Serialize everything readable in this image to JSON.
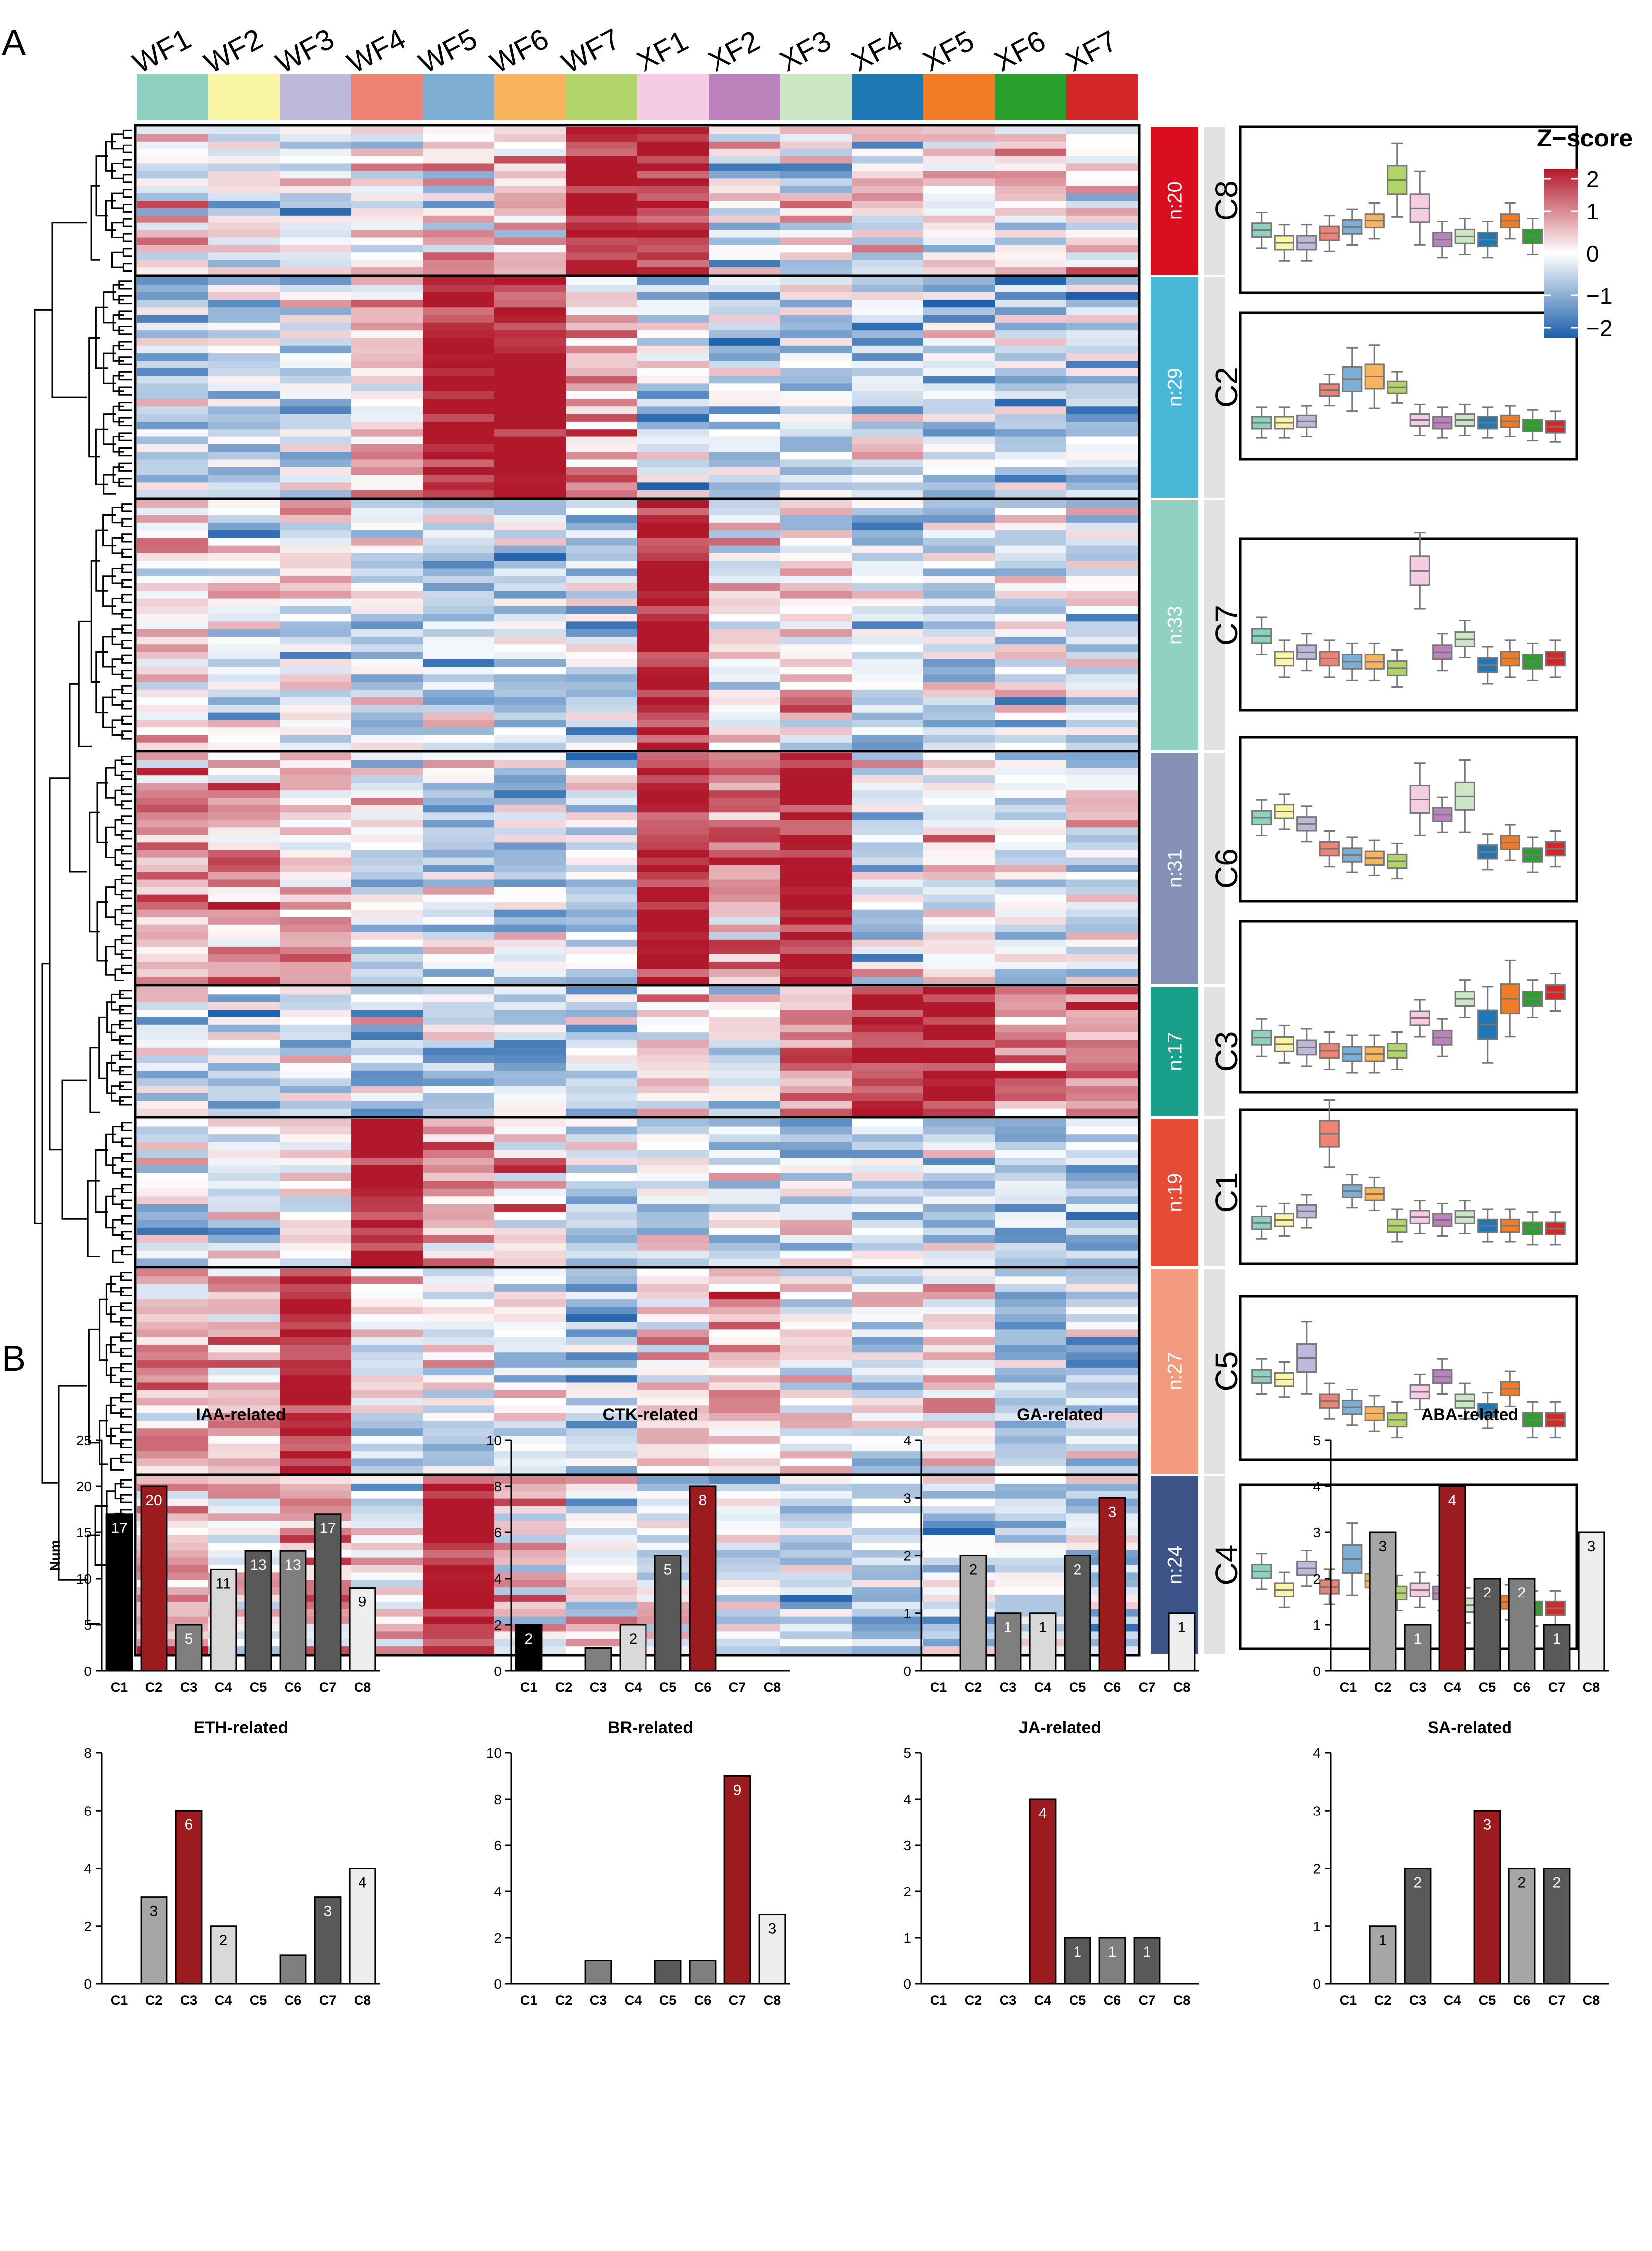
{
  "panel_labels": {
    "a": "A",
    "b": "B"
  },
  "samples": [
    "WF1",
    "WF2",
    "WF3",
    "WF4",
    "WF5",
    "WF6",
    "WF7",
    "XF1",
    "XF2",
    "XF3",
    "XF4",
    "XF5",
    "XF6",
    "XF7"
  ],
  "sample_colors": [
    "#8FD1C1",
    "#FAF6A5",
    "#BEB9DA",
    "#F08274",
    "#7FAED4",
    "#F7B35D",
    "#B1D56A",
    "#F5CCE3",
    "#BC82BC",
    "#CCE7C6",
    "#1F77B4",
    "#F07D26",
    "#2CA02C",
    "#D62728"
  ],
  "legend": {
    "title": "Z−score",
    "ticks": [
      "2",
      "1",
      "0",
      "−1",
      "−2"
    ],
    "tick_values": [
      2,
      1,
      0,
      -1,
      -2
    ],
    "colors": [
      "#1c5fab",
      "#ffffff",
      "#b2182b"
    ]
  },
  "clusters": [
    {
      "id": "C8",
      "n_label": "n:20",
      "n": 20,
      "color": "#DA0E1E",
      "high": [
        6,
        7
      ],
      "medians": [
        0.1,
        -0.3,
        -0.3,
        0.0,
        0.2,
        0.4,
        1.7,
        0.8,
        -0.2,
        -0.1,
        -0.2,
        0.4,
        -0.1,
        0.2
      ]
    },
    {
      "id": "C2",
      "n_label": "n:29",
      "n": 29,
      "color": "#49B7D8",
      "high": [
        4,
        5
      ],
      "medians": [
        -0.6,
        -0.6,
        -0.55,
        0.6,
        1.0,
        1.1,
        0.7,
        -0.5,
        -0.6,
        -0.5,
        -0.6,
        -0.55,
        -0.7,
        -0.75
      ]
    },
    {
      "id": "C7",
      "n_label": "n:33",
      "n": 33,
      "color": "#91D1C2",
      "high": [
        7
      ],
      "medians": [
        0.4,
        -0.3,
        -0.1,
        -0.3,
        -0.4,
        -0.4,
        -0.6,
        2.4,
        -0.1,
        0.3,
        -0.5,
        -0.3,
        -0.4,
        -0.3
      ]
    },
    {
      "id": "C6",
      "n_label": "n:31",
      "n": 31,
      "color": "#8491B4",
      "high": [
        7,
        9
      ],
      "medians": [
        0.8,
        1.0,
        0.6,
        -0.2,
        -0.4,
        -0.5,
        -0.6,
        1.4,
        0.9,
        1.5,
        -0.3,
        0.0,
        -0.4,
        -0.2
      ]
    },
    {
      "id": "C3",
      "n_label": "n:17",
      "n": 17,
      "color": "#1AA08A",
      "high": [
        10,
        11
      ],
      "medians": [
        -0.2,
        -0.4,
        -0.5,
        -0.6,
        -0.7,
        -0.7,
        -0.6,
        0.4,
        -0.2,
        1.0,
        0.2,
        1.0,
        1.0,
        1.2
      ]
    },
    {
      "id": "C1",
      "n_label": "n:19",
      "n": 19,
      "color": "#E64B35",
      "high": [
        3
      ],
      "medians": [
        -0.5,
        -0.4,
        -0.1,
        2.6,
        0.6,
        0.5,
        -0.6,
        -0.3,
        -0.4,
        -0.3,
        -0.6,
        -0.6,
        -0.7,
        -0.7
      ]
    },
    {
      "id": "C5",
      "n_label": "n:27",
      "n": 27,
      "color": "#F39B7F",
      "high": [
        2
      ],
      "medians": [
        0.8,
        0.7,
        1.4,
        0.0,
        -0.2,
        -0.4,
        -0.6,
        0.3,
        0.8,
        0.0,
        -0.3,
        0.4,
        -0.6,
        -0.6
      ]
    },
    {
      "id": "C4",
      "n_label": "n:24",
      "n": 24,
      "color": "#3C5488",
      "high": [
        4
      ],
      "medians": [
        0.6,
        0.0,
        0.7,
        0.1,
        1.0,
        0.3,
        -0.1,
        0.0,
        -0.1,
        -0.5,
        -0.7,
        -0.4,
        -0.6,
        -0.6
      ]
    }
  ],
  "chart_data": [
    {
      "type": "bar",
      "title": "IAA-related",
      "ylabel": "Num",
      "categories": [
        "C1",
        "C2",
        "C3",
        "C4",
        "C5",
        "C6",
        "C7",
        "C8"
      ],
      "values": [
        17,
        20,
        5,
        11,
        13,
        13,
        17,
        9
      ],
      "value_labels": [
        "17",
        "20",
        "5",
        "11",
        "13",
        "13",
        "17",
        "9"
      ],
      "ylim": [
        0,
        25
      ],
      "yticks": [
        "0",
        "5",
        "10",
        "15",
        "20",
        "25"
      ],
      "highlight_index": 1,
      "colors": [
        "#000000",
        "#9B1B1E",
        "#7F7F7F",
        "#D9D9D9",
        "#595959",
        "#7F7F7F",
        "#595959",
        "#EEEEEE"
      ],
      "label_colors": [
        "#ffffff",
        "#ffffff",
        "#ffffff",
        "#000000",
        "#ffffff",
        "#ffffff",
        "#ffffff",
        "#000000"
      ]
    },
    {
      "type": "bar",
      "title": "CTK-related",
      "ylabel": "",
      "categories": [
        "C1",
        "C2",
        "C3",
        "C4",
        "C5",
        "C6",
        "C7",
        "C8"
      ],
      "values": [
        2,
        0,
        1,
        2,
        5,
        8,
        0,
        0
      ],
      "value_labels": [
        "2",
        "",
        "",
        "2",
        "5",
        "8",
        "",
        ""
      ],
      "ylim": [
        0,
        10
      ],
      "yticks": [
        "0",
        "2",
        "4",
        "6",
        "8",
        "10"
      ],
      "highlight_index": 5,
      "colors": [
        "#000000",
        "#9B1B1E",
        "#7F7F7F",
        "#D9D9D9",
        "#595959",
        "#9B1B1E",
        "#595959",
        "#EEEEEE"
      ],
      "label_colors": [
        "#ffffff",
        "#ffffff",
        "#ffffff",
        "#000000",
        "#ffffff",
        "#ffffff",
        "#ffffff",
        "#000000"
      ]
    },
    {
      "type": "bar",
      "title": "GA-related",
      "ylabel": "",
      "categories": [
        "C1",
        "C2",
        "C3",
        "C4",
        "C5",
        "C6",
        "C7",
        "C8"
      ],
      "values": [
        0,
        2,
        1,
        1,
        2,
        3,
        0,
        1
      ],
      "value_labels": [
        "",
        "2",
        "1",
        "1",
        "2",
        "3",
        "",
        "1"
      ],
      "ylim": [
        0,
        4
      ],
      "yticks": [
        "0",
        "1",
        "2",
        "3",
        "4"
      ],
      "highlight_index": 5,
      "colors": [
        "#000000",
        "#A6A6A6",
        "#7F7F7F",
        "#D9D9D9",
        "#595959",
        "#9B1B1E",
        "#595959",
        "#EEEEEE"
      ],
      "label_colors": [
        "#ffffff",
        "#000000",
        "#ffffff",
        "#000000",
        "#ffffff",
        "#ffffff",
        "#ffffff",
        "#000000"
      ]
    },
    {
      "type": "bar",
      "title": "ABA-related",
      "ylabel": "",
      "categories": [
        "C1",
        "C2",
        "C3",
        "C4",
        "C5",
        "C6",
        "C7",
        "C8"
      ],
      "values": [
        0,
        3,
        1,
        4,
        2,
        2,
        1,
        3
      ],
      "value_labels": [
        "",
        "3",
        "1",
        "4",
        "2",
        "2",
        "1",
        "3"
      ],
      "ylim": [
        0,
        5
      ],
      "yticks": [
        "0",
        "1",
        "2",
        "3",
        "4",
        "5"
      ],
      "highlight_index": 3,
      "colors": [
        "#000000",
        "#A6A6A6",
        "#7F7F7F",
        "#9B1B1E",
        "#595959",
        "#7F7F7F",
        "#595959",
        "#EEEEEE"
      ],
      "label_colors": [
        "#ffffff",
        "#000000",
        "#ffffff",
        "#ffffff",
        "#ffffff",
        "#ffffff",
        "#ffffff",
        "#000000"
      ]
    },
    {
      "type": "bar",
      "title": "ETH-related",
      "ylabel": "",
      "categories": [
        "C1",
        "C2",
        "C3",
        "C4",
        "C5",
        "C6",
        "C7",
        "C8"
      ],
      "values": [
        0,
        3,
        6,
        2,
        0,
        1,
        3,
        4
      ],
      "value_labels": [
        "",
        "3",
        "6",
        "2",
        "",
        "",
        "3",
        "4"
      ],
      "ylim": [
        0,
        8
      ],
      "yticks": [
        "0",
        "2",
        "4",
        "6",
        "8"
      ],
      "highlight_index": 2,
      "colors": [
        "#000000",
        "#A6A6A6",
        "#9B1B1E",
        "#D9D9D9",
        "#595959",
        "#7F7F7F",
        "#595959",
        "#EEEEEE"
      ],
      "label_colors": [
        "#ffffff",
        "#000000",
        "#ffffff",
        "#000000",
        "#ffffff",
        "#ffffff",
        "#ffffff",
        "#000000"
      ]
    },
    {
      "type": "bar",
      "title": "BR-related",
      "ylabel": "",
      "categories": [
        "C1",
        "C2",
        "C3",
        "C4",
        "C5",
        "C6",
        "C7",
        "C8"
      ],
      "values": [
        0,
        0,
        1,
        0,
        1,
        1,
        9,
        3
      ],
      "value_labels": [
        "",
        "",
        "",
        "",
        "",
        "",
        "9",
        "3"
      ],
      "ylim": [
        0,
        10
      ],
      "yticks": [
        "0",
        "2",
        "4",
        "6",
        "8",
        "10"
      ],
      "highlight_index": 6,
      "colors": [
        "#000000",
        "#A6A6A6",
        "#7F7F7F",
        "#D9D9D9",
        "#595959",
        "#7F7F7F",
        "#9B1B1E",
        "#EEEEEE"
      ],
      "label_colors": [
        "#ffffff",
        "#000000",
        "#ffffff",
        "#000000",
        "#ffffff",
        "#ffffff",
        "#ffffff",
        "#000000"
      ]
    },
    {
      "type": "bar",
      "title": "JA-related",
      "ylabel": "",
      "categories": [
        "C1",
        "C2",
        "C3",
        "C4",
        "C5",
        "C6",
        "C7",
        "C8"
      ],
      "values": [
        0,
        0,
        0,
        4,
        1,
        1,
        1,
        0
      ],
      "value_labels": [
        "",
        "",
        "",
        "4",
        "1",
        "1",
        "1",
        ""
      ],
      "ylim": [
        0,
        5
      ],
      "yticks": [
        "0",
        "1",
        "2",
        "3",
        "4",
        "5"
      ],
      "highlight_index": 3,
      "colors": [
        "#000000",
        "#A6A6A6",
        "#7F7F7F",
        "#9B1B1E",
        "#595959",
        "#7F7F7F",
        "#595959",
        "#EEEEEE"
      ],
      "label_colors": [
        "#ffffff",
        "#000000",
        "#ffffff",
        "#ffffff",
        "#ffffff",
        "#ffffff",
        "#ffffff",
        "#000000"
      ]
    },
    {
      "type": "bar",
      "title": "SA-related",
      "ylabel": "",
      "categories": [
        "C1",
        "C2",
        "C3",
        "C4",
        "C5",
        "C6",
        "C7",
        "C8"
      ],
      "values": [
        0,
        1,
        2,
        0,
        3,
        2,
        2,
        0
      ],
      "value_labels": [
        "",
        "1",
        "2",
        "",
        "3",
        "2",
        "2",
        ""
      ],
      "ylim": [
        0,
        4
      ],
      "yticks": [
        "0",
        "1",
        "2",
        "3",
        "4"
      ],
      "highlight_index": 4,
      "colors": [
        "#000000",
        "#A6A6A6",
        "#595959",
        "#D9D9D9",
        "#9B1B1E",
        "#A6A6A6",
        "#595959",
        "#EEEEEE"
      ],
      "label_colors": [
        "#ffffff",
        "#000000",
        "#ffffff",
        "#000000",
        "#ffffff",
        "#000000",
        "#ffffff",
        "#000000"
      ]
    }
  ]
}
